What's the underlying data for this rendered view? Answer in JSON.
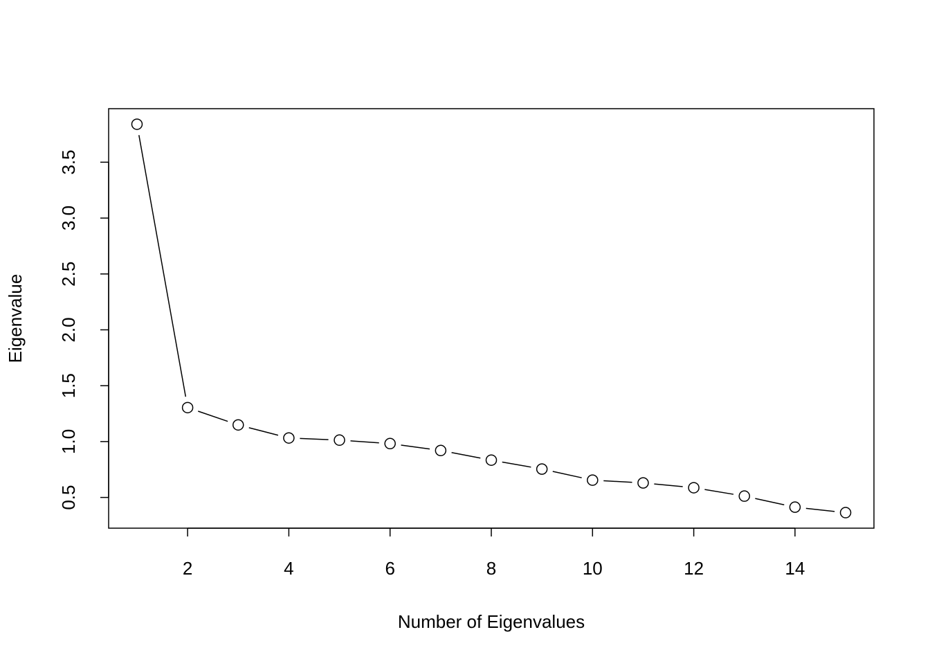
{
  "chart_data": {
    "type": "line",
    "xlabel": "Number of Eigenvalues",
    "ylabel": "Eigenvalue",
    "x": [
      1,
      2,
      3,
      4,
      5,
      6,
      7,
      8,
      9,
      10,
      11,
      12,
      13,
      14,
      15
    ],
    "y": [
      3.84,
      1.304,
      1.149,
      1.032,
      1.013,
      0.982,
      0.92,
      0.834,
      0.754,
      0.655,
      0.63,
      0.587,
      0.512,
      0.413,
      0.364
    ],
    "color": "#000000",
    "xlim": [
      0.44,
      15.56
    ],
    "ylim": [
      0.225,
      3.979
    ],
    "xticks": [
      2,
      4,
      6,
      8,
      10,
      12,
      14
    ],
    "yticks": [
      0.5,
      {
        "value": 1,
        "label": "1.0"
      },
      1.5,
      {
        "value": 2,
        "label": "2.0"
      },
      2.5,
      {
        "value": 3,
        "label": "3.0"
      },
      3.5
    ]
  }
}
